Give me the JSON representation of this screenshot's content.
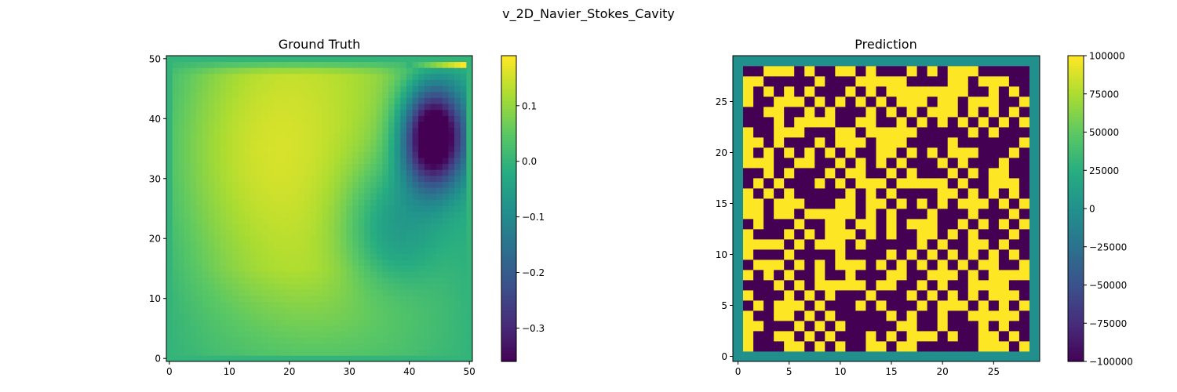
{
  "figure": {
    "title": "v_2D_Navier_Stokes_Cavity"
  },
  "chart_data": [
    {
      "type": "heatmap",
      "title": "Ground Truth",
      "grid_size": 51,
      "xlim": [
        -0.5,
        50.5
      ],
      "ylim": [
        -0.5,
        50.5
      ],
      "x_ticks": [
        0,
        10,
        20,
        30,
        40,
        50
      ],
      "y_ticks": [
        0,
        10,
        20,
        30,
        40,
        50
      ],
      "colormap": "viridis",
      "vmin": -0.36,
      "vmax": 0.19,
      "colorbar_ticks": [
        0.1,
        0.0,
        -0.1,
        -0.2,
        -0.3
      ],
      "colorbar_tick_labels": [
        "0.1",
        "0.0",
        "−0.1",
        "−0.2",
        "−0.3"
      ],
      "field_description": "Smooth v-velocity field, zero on walls; positive lobe near (11,35) peak ~0.15, negative vortex near (44,37) min ~-0.36, thin positive strip at top-right row 49 up to ~0.19",
      "features": {
        "zero_boundary_rows": [
          0,
          50
        ],
        "zero_boundary_cols": [
          0,
          50
        ],
        "positive_peak": {
          "x": 11,
          "y": 35,
          "value": 0.15
        },
        "negative_peak": {
          "x": 44,
          "y": 37,
          "value": -0.36
        },
        "top_strip": {
          "row": 49,
          "x_from": 40,
          "x_to": 49,
          "value_max": 0.19
        }
      }
    },
    {
      "type": "heatmap",
      "title": "Prediction",
      "grid_size": 30,
      "xlim": [
        -0.5,
        29.5
      ],
      "ylim": [
        -0.5,
        29.5
      ],
      "x_ticks": [
        0,
        5,
        10,
        15,
        20,
        25
      ],
      "y_ticks": [
        0,
        5,
        10,
        15,
        20,
        25
      ],
      "colormap": "viridis",
      "vmin": -100000,
      "vmax": 100000,
      "colorbar_ticks": [
        100000,
        75000,
        50000,
        25000,
        0,
        -25000,
        -50000,
        -75000,
        -100000
      ],
      "colorbar_tick_labels": [
        "100000",
        "75000",
        "50000",
        "25000",
        "0",
        "−25000",
        "−50000",
        "−75000",
        "−100000"
      ],
      "boundary_value": 0,
      "interior_values": [
        -100000,
        100000
      ],
      "field_description": "Border of zeros (one cell wide), interior cells alternate between +100000 and -100000 in a noisy checkerboard"
    }
  ]
}
